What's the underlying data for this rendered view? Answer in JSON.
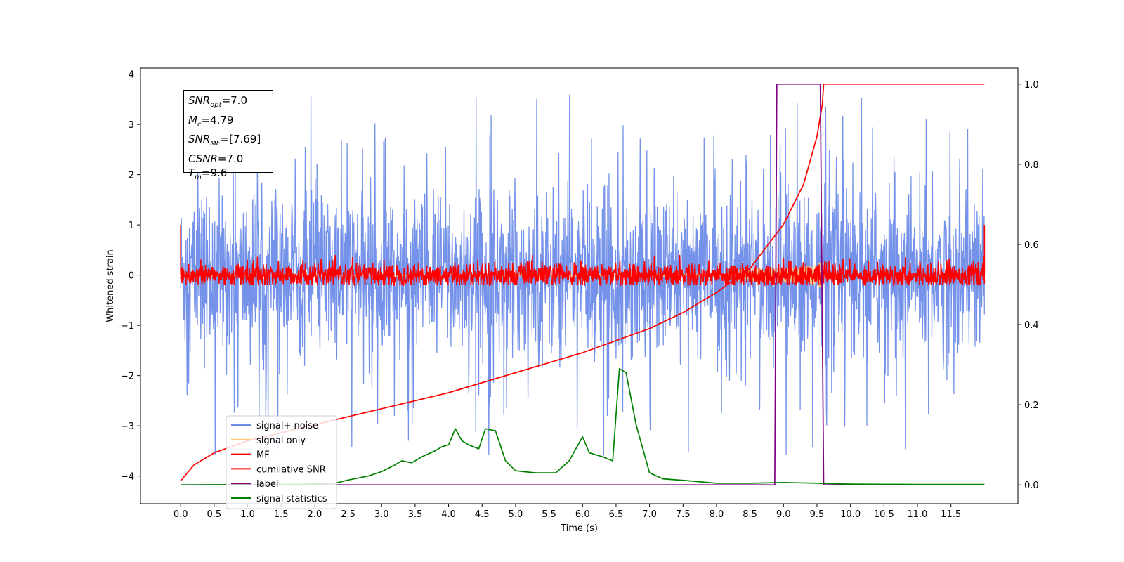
{
  "chart_data": {
    "type": "line",
    "xlabel": "Time (s)",
    "ylabel": "Whitened strain",
    "xlim": [
      -0.6,
      12.5
    ],
    "ylim": [
      -4.55,
      4.12
    ],
    "y2lim": [
      -0.047,
      1.04
    ],
    "x_ticks": [
      0.0,
      0.5,
      1.0,
      1.5,
      2.0,
      2.5,
      3.0,
      3.5,
      4.0,
      4.5,
      5.0,
      5.5,
      6.0,
      6.5,
      7.0,
      7.5,
      8.0,
      8.5,
      9.0,
      9.5,
      10.0,
      10.5,
      11.0,
      11.5
    ],
    "x_tick_labels": [
      "0.0",
      "0.5",
      "1.0",
      "1.5",
      "2.0",
      "2.5",
      "3.0",
      "3.5",
      "4.0",
      "4.5",
      "5.0",
      "5.5",
      "6.0",
      "6.5",
      "7.0",
      "7.5",
      "8.0",
      "8.5",
      "9.0",
      "9.5",
      "10.0",
      "10.5",
      "11.0",
      "11.5"
    ],
    "y_ticks": [
      4,
      3,
      2,
      1,
      0,
      -1,
      -2,
      -3,
      -4
    ],
    "y_tick_labels": [
      "4",
      "3",
      "2",
      "1",
      "0",
      "−1",
      "−2",
      "−3",
      "−4"
    ],
    "y2_ticks": [
      1.0,
      0.8,
      0.6,
      0.4,
      0.2,
      0.0
    ],
    "y2_tick_labels": [
      "1.0",
      "0.8",
      "0.6",
      "0.4",
      "0.2",
      "0.0"
    ],
    "grid": false,
    "legend_position": "lower-left",
    "series": [
      {
        "name": "signal+ noise",
        "color": "#6d8ce8",
        "axis": "left",
        "kind": "noise",
        "x_range": [
          0.0,
          12.0
        ],
        "amplitude": 1.0
      },
      {
        "name": "signal only",
        "color": "#ffc873",
        "axis": "left",
        "kind": "chirp",
        "x_range": [
          0.0,
          9.6
        ],
        "peak_amplitude": 0.35
      },
      {
        "name": "MF",
        "color": "#ff0000",
        "axis": "left",
        "kind": "noise",
        "x_range": [
          0.0,
          12.0
        ],
        "amplitude": 0.15
      },
      {
        "name": "cumilative SNR",
        "color": "#ff0000",
        "axis": "right",
        "x": [
          0.0,
          0.2,
          0.5,
          1.0,
          1.5,
          2.0,
          3.0,
          4.0,
          5.0,
          6.0,
          7.0,
          7.5,
          8.0,
          8.5,
          9.0,
          9.3,
          9.5,
          9.58,
          9.6,
          12.0
        ],
        "y": [
          0.01,
          0.05,
          0.08,
          0.11,
          0.13,
          0.15,
          0.19,
          0.23,
          0.28,
          0.33,
          0.39,
          0.43,
          0.48,
          0.54,
          0.65,
          0.75,
          0.87,
          0.95,
          1.0,
          1.0
        ]
      },
      {
        "name": "label",
        "color": "#800080",
        "axis": "right",
        "x": [
          0.0,
          8.87,
          8.9,
          9.55,
          9.6,
          12.0
        ],
        "y": [
          0.0,
          0.0,
          1.0,
          1.0,
          0.0,
          0.0
        ]
      },
      {
        "name": "signal statistics",
        "color": "#008000",
        "axis": "right",
        "x": [
          0.0,
          1.5,
          2.0,
          2.3,
          2.5,
          2.8,
          3.0,
          3.2,
          3.3,
          3.45,
          3.6,
          3.8,
          3.9,
          4.0,
          4.1,
          4.2,
          4.3,
          4.45,
          4.55,
          4.7,
          4.85,
          5.0,
          5.3,
          5.6,
          5.8,
          6.0,
          6.1,
          6.3,
          6.45,
          6.55,
          6.65,
          6.8,
          7.0,
          7.2,
          7.6,
          8.0,
          8.5,
          9.0,
          9.5,
          10.0,
          11.0,
          12.0
        ],
        "y": [
          0.0,
          0.001,
          0.002,
          0.004,
          0.012,
          0.022,
          0.033,
          0.05,
          0.06,
          0.055,
          0.07,
          0.085,
          0.095,
          0.1,
          0.14,
          0.11,
          0.1,
          0.09,
          0.14,
          0.135,
          0.06,
          0.035,
          0.03,
          0.03,
          0.06,
          0.12,
          0.08,
          0.07,
          0.06,
          0.29,
          0.28,
          0.15,
          0.03,
          0.015,
          0.01,
          0.004,
          0.004,
          0.006,
          0.004,
          0.002,
          0.001,
          0.001
        ]
      }
    ]
  },
  "info_box": {
    "snr_opt_sym": "SNR",
    "snr_opt_sub": "opt",
    "snr_opt_val": "=7.0",
    "mc_sym": "M",
    "mc_sub": "c",
    "mc_val": "=4.79",
    "snr_mf_sym": "SNR",
    "snr_mf_sub": "MF",
    "snr_mf_val": "=[7.69]",
    "csnr_sym": "CSNR",
    "csnr_val": "=7.0",
    "tm_sym": "T",
    "tm_sub": "m",
    "tm_val": "=9.6"
  }
}
